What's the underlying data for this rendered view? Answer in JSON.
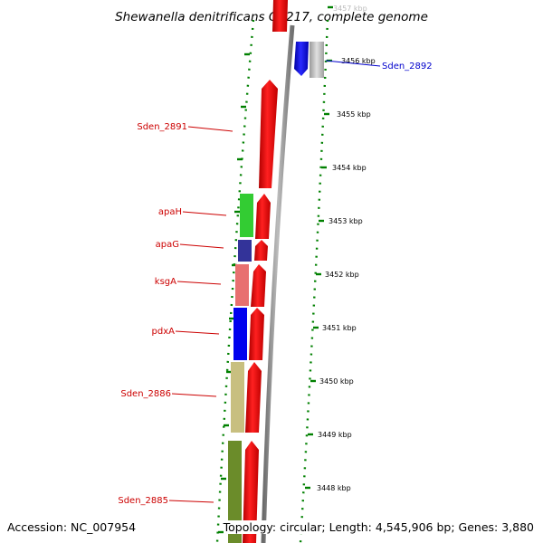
{
  "title": "Shewanella denitrificans OS217, complete genome",
  "footer": {
    "accession": "Accession: NC_007954",
    "topology": "Topology: circular; Length: 4,545,906 bp; Genes: 3,880"
  },
  "ticks": [
    "3457 kbp",
    "3456 kbp",
    "3455 kbp",
    "3454 kbp",
    "3453 kbp",
    "3452 kbp",
    "3451 kbp",
    "3450 kbp",
    "3449 kbp",
    "3448 kbp"
  ],
  "gene_labels": [
    "Sden_2891",
    "apaH",
    "apaG",
    "ksgA",
    "pdxA",
    "Sden_2886",
    "Sden_2885",
    "Sden_2892"
  ],
  "colors": {
    "forward_cds": "#ff0000",
    "reverse_cds": "#0000ff",
    "backbone": "#808080",
    "tick_marks": "#008000",
    "label_red": "#cc0000",
    "label_blue": "#0000cc",
    "apaH": "#33cc33",
    "apaG": "#333399",
    "ksgA": "#e87070",
    "pdxA": "#0000ee",
    "Sden_2886": "#c8bf80",
    "Sden_2885": "#6b8c2a"
  }
}
